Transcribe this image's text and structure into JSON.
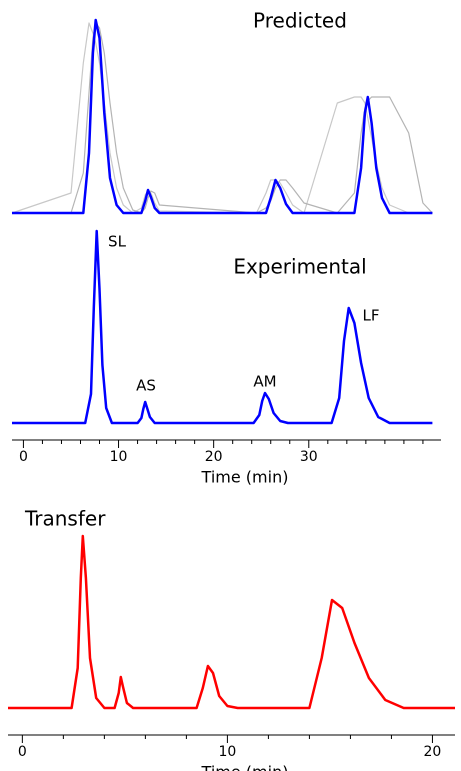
{
  "chart_data": [
    {
      "type": "line",
      "title": "Predicted",
      "xlim": [
        -1.2,
        43.9
      ],
      "ylim": [
        0,
        200
      ],
      "x": [
        -1.2,
        5.0,
        6.3,
        6.9,
        7.3,
        7.6,
        8.0,
        8.5,
        9.1,
        9.8,
        10.5,
        11.5,
        12.4,
        12.8,
        13.1,
        13.4,
        13.8,
        14.3,
        24.5,
        25.5,
        26.0,
        26.5,
        27.0,
        27.6,
        28.3,
        29.5,
        33.0,
        34.8,
        35.5,
        35.9,
        36.2,
        36.6,
        37.1,
        37.7,
        38.5,
        40.5,
        42,
        43
      ],
      "series": [
        {
          "color": "#c8c8c8",
          "values": [
            0,
            20,
            150,
            190,
            180,
            170,
            150,
            110,
            60,
            25,
            8,
            0,
            5,
            18,
            22,
            20,
            10,
            2,
            0,
            20,
            33,
            33,
            30,
            20,
            8,
            0,
            110,
            116,
            116,
            110,
            95,
            75,
            50,
            25,
            8,
            0,
            0,
            0
          ]
        },
        {
          "color": "#b4b4b4",
          "values": [
            0,
            0,
            40,
            120,
            175,
            190,
            185,
            160,
            110,
            60,
            25,
            3,
            0,
            5,
            15,
            22,
            20,
            8,
            0,
            5,
            12,
            25,
            33,
            33,
            25,
            10,
            0,
            20,
            80,
            105,
            112,
            116,
            116,
            116,
            116,
            80,
            10,
            0
          ]
        },
        {
          "color": "#0000ff",
          "values": [
            0,
            0,
            0,
            60,
            160,
            193,
            175,
            100,
            35,
            8,
            0,
            0,
            0,
            12,
            23,
            16,
            5,
            0,
            0,
            0,
            15,
            33,
            25,
            9,
            0,
            0,
            0,
            0,
            45,
            100,
            116,
            90,
            45,
            15,
            0,
            0,
            0,
            0
          ]
        }
      ]
    },
    {
      "type": "line",
      "title": "Experimental",
      "xlabel": "Time (min)",
      "xlim": [
        -1.2,
        43.9
      ],
      "ylim": [
        0,
        200
      ],
      "xticks": [
        0,
        10,
        20,
        30
      ],
      "minor_xticks": [
        2,
        4,
        6,
        8,
        12,
        14,
        16,
        18,
        22,
        24,
        26,
        28,
        32,
        34,
        36,
        38,
        40,
        42
      ],
      "x": [
        -1.2,
        6.5,
        7.1,
        7.4,
        7.7,
        8.0,
        8.3,
        8.7,
        9.3,
        12.0,
        12.4,
        12.6,
        12.8,
        13.0,
        13.3,
        13.8,
        24.2,
        24.8,
        25.1,
        25.4,
        25.8,
        26.3,
        27.0,
        27.8,
        32.4,
        33.2,
        33.7,
        34.2,
        34.8,
        35.5,
        36.3,
        37.3,
        38.5,
        43
      ],
      "series": [
        {
          "color": "#0000ff",
          "values": [
            0,
            0,
            29,
            115,
            192,
            134,
            58,
            15,
            0,
            0,
            5,
            14,
            21,
            15,
            6,
            0,
            0,
            8,
            22,
            30,
            24,
            10,
            2,
            0,
            0,
            25,
            82,
            115,
            100,
            60,
            25,
            6,
            0,
            0
          ]
        }
      ],
      "annotations": [
        "SL",
        "AS",
        "AM",
        "LF"
      ]
    },
    {
      "type": "line",
      "title": "Transfer",
      "xlabel": "Time (min)",
      "xlim": [
        -0.7,
        21.1
      ],
      "ylim": [
        0,
        200
      ],
      "xticks": [
        0,
        10,
        20
      ],
      "minor_xticks": [
        2,
        4,
        6,
        8,
        12,
        14,
        16,
        18
      ],
      "x": [
        -0.7,
        2.4,
        2.7,
        2.85,
        2.95,
        3.1,
        3.3,
        3.6,
        4.0,
        4.5,
        4.7,
        4.8,
        4.9,
        5.1,
        5.4,
        8.5,
        8.8,
        9.05,
        9.3,
        9.6,
        10.0,
        10.5,
        14.0,
        14.6,
        15.1,
        15.6,
        16.2,
        16.9,
        17.7,
        18.6,
        21.1
      ],
      "series": [
        {
          "color": "#ff0000",
          "values": [
            0,
            0,
            40,
            130,
            172,
            130,
            50,
            10,
            0,
            0,
            15,
            31,
            22,
            5,
            0,
            0,
            20,
            42,
            35,
            12,
            2,
            0,
            0,
            50,
            108,
            100,
            65,
            30,
            8,
            0,
            0
          ]
        }
      ]
    }
  ]
}
